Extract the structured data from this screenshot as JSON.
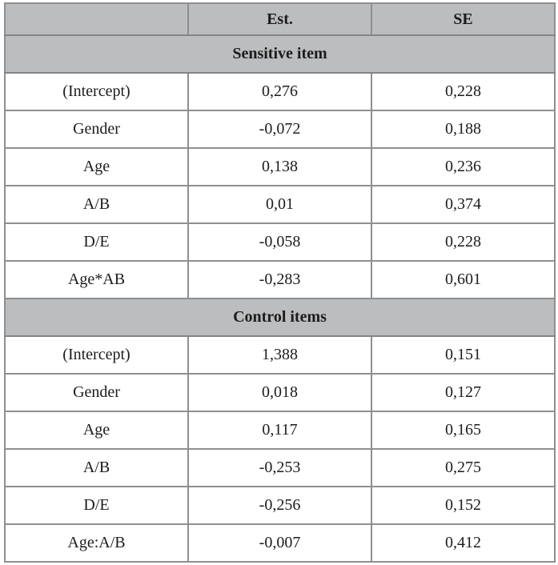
{
  "table": {
    "columns": [
      "",
      "Est.",
      "SE"
    ],
    "sections": [
      {
        "title": "Sensitive item",
        "rows": [
          [
            "(Intercept)",
            "0,276",
            "0,228"
          ],
          [
            "Gender",
            "-0,072",
            "0,188"
          ],
          [
            "Age",
            "0,138",
            "0,236"
          ],
          [
            "A/B",
            "0,01",
            "0,374"
          ],
          [
            "D/E",
            "-0,058",
            "0,228"
          ],
          [
            "Age*AB",
            "-0,283",
            "0,601"
          ]
        ]
      },
      {
        "title": "Control items",
        "rows": [
          [
            "(Intercept)",
            "1,388",
            "0,151"
          ],
          [
            "Gender",
            "0,018",
            "0,127"
          ],
          [
            "Age",
            "0,117",
            "0,165"
          ],
          [
            "A/B",
            "-0,253",
            "0,275"
          ],
          [
            "D/E",
            "-0,256",
            "0,152"
          ],
          [
            "Age:A/B",
            "-0,007",
            "0,412"
          ]
        ]
      }
    ]
  },
  "colors": {
    "header_bg": "#bcbdbf",
    "border": "#8f8f91",
    "text": "#1c1c1c"
  }
}
